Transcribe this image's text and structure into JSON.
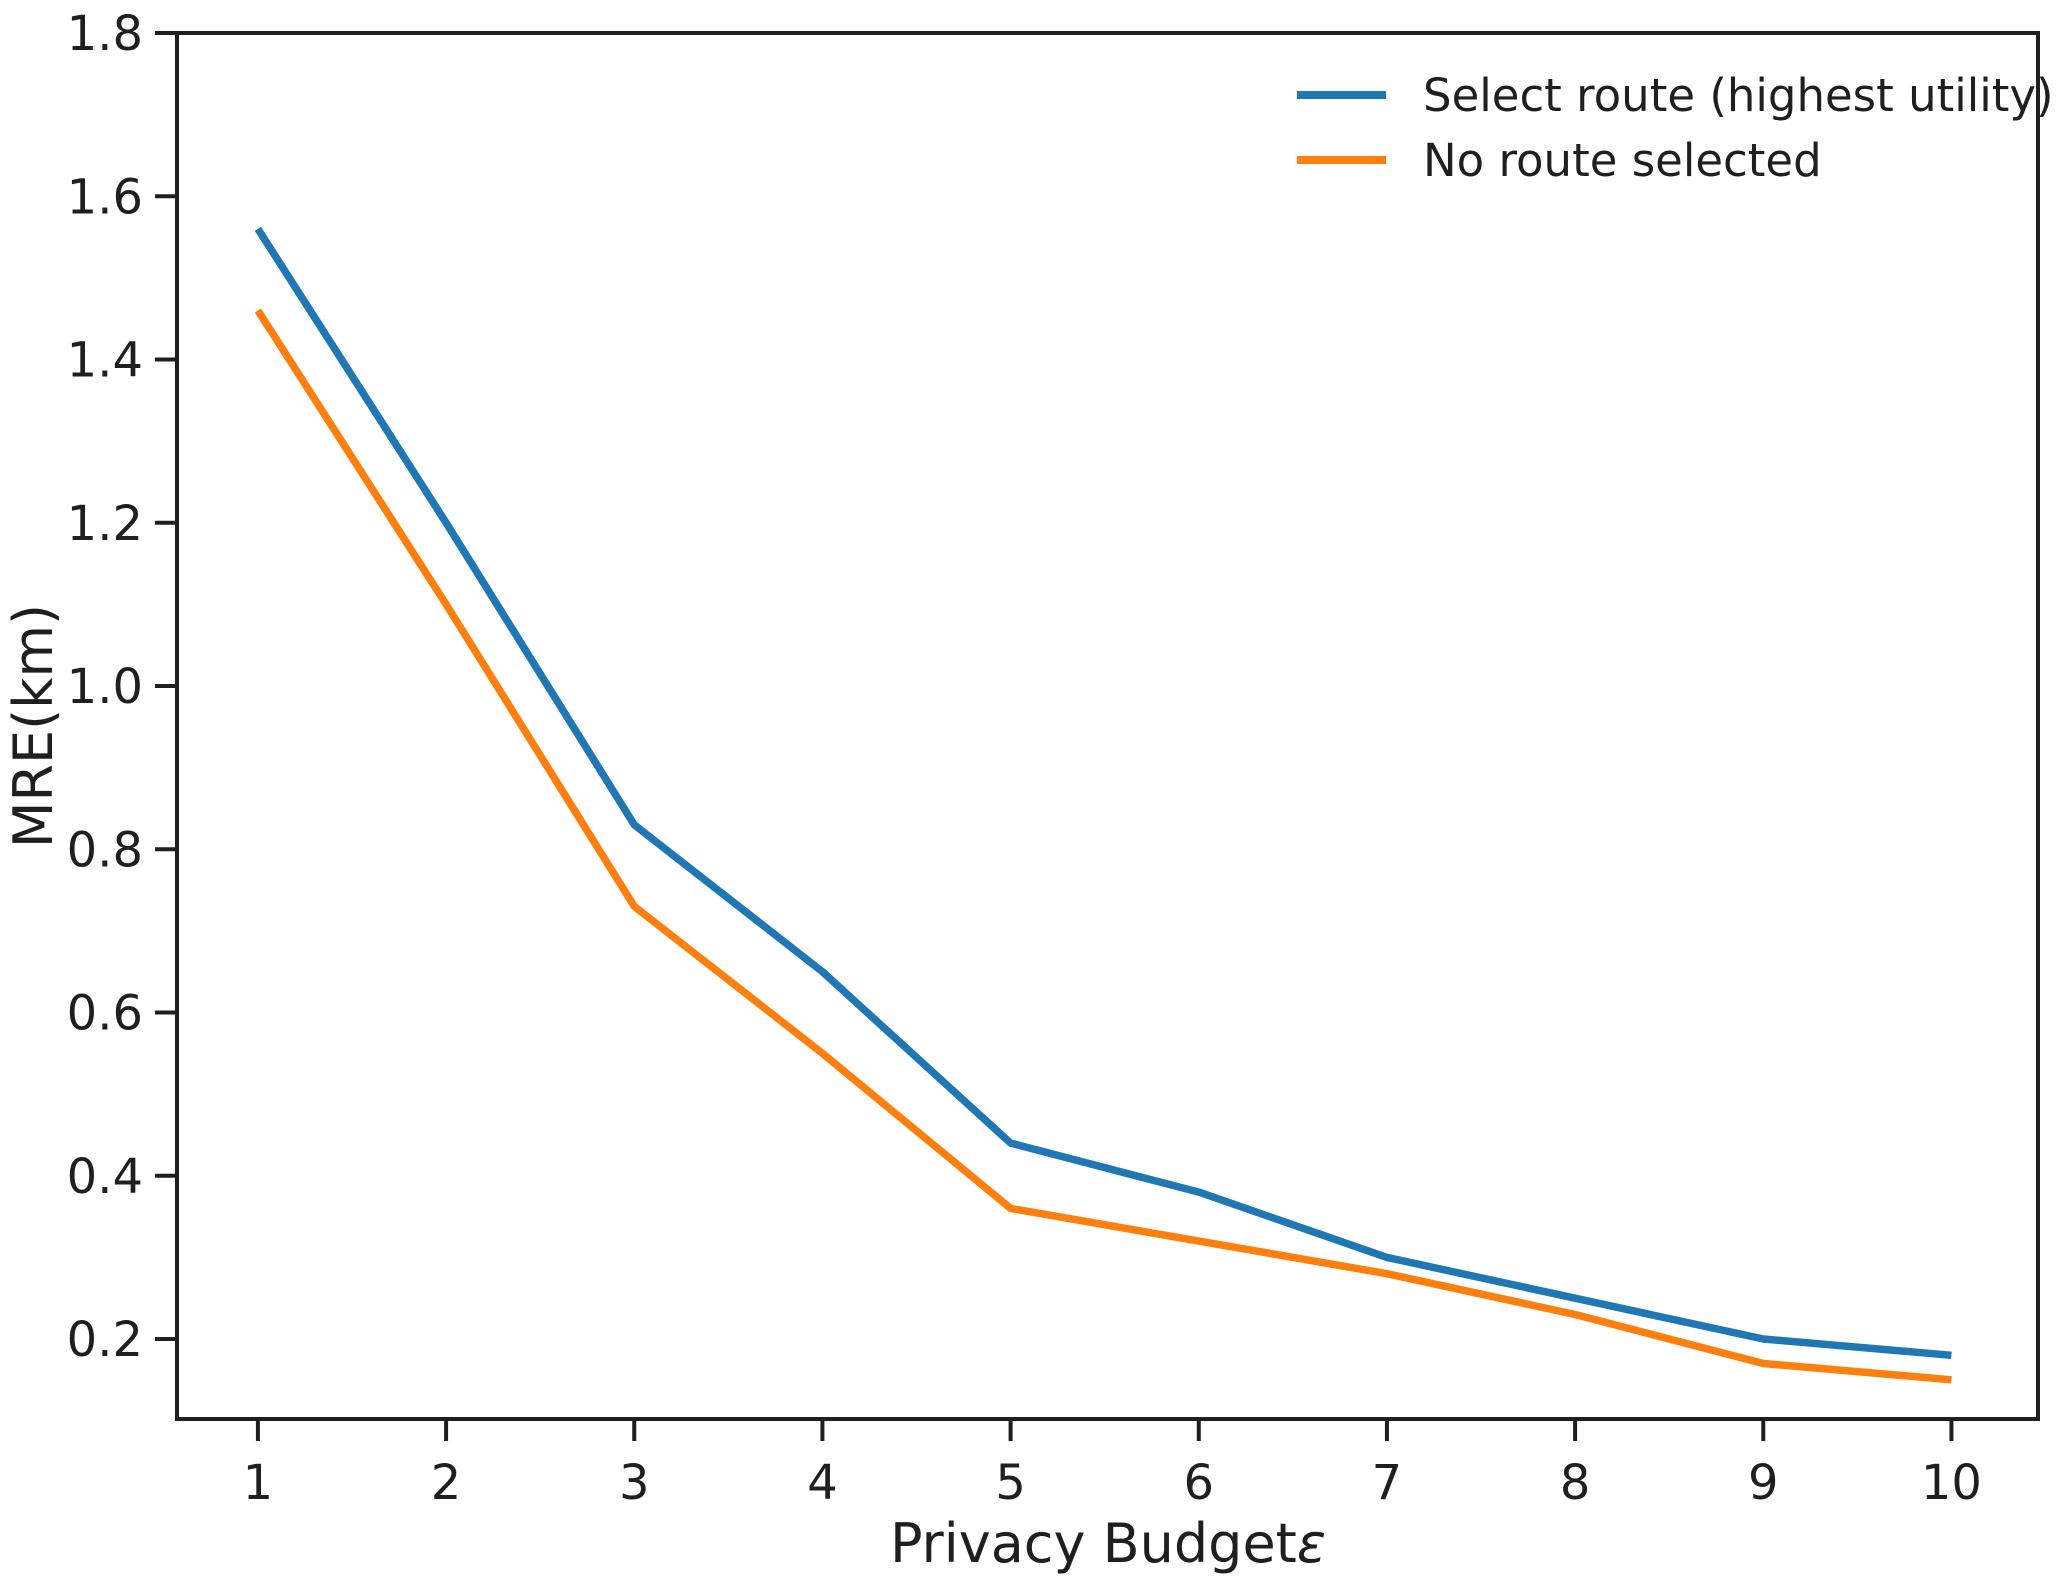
{
  "figure": {
    "background": "#ffffff",
    "axis_color": "#1f1f1f"
  },
  "chart_data": {
    "type": "line",
    "title": "",
    "xlabel": "Privacy Budget",
    "xlabel_epsilon": "ε",
    "ylabel": "MRE(km)",
    "grid": false,
    "legend_position": "upper right",
    "legend_frame": false,
    "xlim": [
      0.57,
      10.46
    ],
    "ylim": [
      0.102,
      1.8
    ],
    "x": [
      1,
      2,
      3,
      4,
      5,
      6,
      7,
      8,
      9,
      10
    ],
    "xtick_labels": [
      "1",
      "2",
      "3",
      "4",
      "5",
      "6",
      "7",
      "8",
      "9",
      "10"
    ],
    "ytick_values": [
      0.2,
      0.4,
      0.6,
      0.8,
      1.0,
      1.2,
      1.4,
      1.6,
      1.8
    ],
    "ytick_labels": [
      "0.2",
      "0.4",
      "0.6",
      "0.8",
      "1.0",
      "1.2",
      "1.4",
      "1.6",
      "1.8"
    ],
    "series": [
      {
        "name": "Select route (highest utility)",
        "color": "#1f77b4",
        "values": [
          1.56,
          1.2,
          0.83,
          0.65,
          0.44,
          0.38,
          0.3,
          0.25,
          0.2,
          0.18
        ]
      },
      {
        "name": "No route selected",
        "color": "#ff7f0e",
        "values": [
          1.46,
          1.1,
          0.73,
          0.55,
          0.36,
          0.32,
          0.28,
          0.23,
          0.17,
          0.15
        ]
      }
    ]
  }
}
